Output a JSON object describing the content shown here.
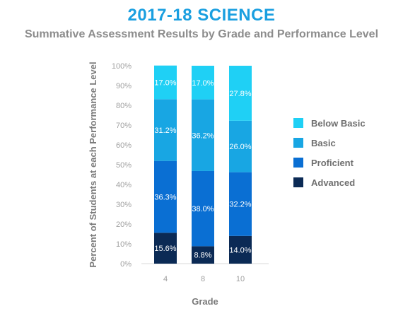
{
  "chart_data": {
    "type": "bar",
    "stacked": true,
    "title": "2017-18 SCIENCE",
    "subtitle": "Summative Assessment Results by Grade and Performance Level",
    "xlabel": "Grade",
    "ylabel": "Percent of Students at each Performance Level",
    "ylim": [
      0,
      100
    ],
    "yticks": [
      "0%",
      "10%",
      "20%",
      "30%",
      "40%",
      "50%",
      "60%",
      "70%",
      "80%",
      "90%",
      "100%"
    ],
    "categories": [
      "4",
      "8",
      "10"
    ],
    "series": [
      {
        "name": "Advanced",
        "color": "#0b2a55",
        "values": [
          15.6,
          8.8,
          14.0
        ],
        "labels": [
          "15.6%",
          "8.8%",
          "14.0%"
        ]
      },
      {
        "name": "Proficient",
        "color": "#0a6fd3",
        "values": [
          36.3,
          38.0,
          32.2
        ],
        "labels": [
          "36.3%",
          "38.0%",
          "32.2%"
        ]
      },
      {
        "name": "Basic",
        "color": "#18a6e3",
        "values": [
          31.2,
          36.2,
          26.0
        ],
        "labels": [
          "31.2%",
          "36.2%",
          "26.0%"
        ]
      },
      {
        "name": "Below Basic",
        "color": "#1fd0f5",
        "values": [
          17.0,
          17.0,
          27.8
        ],
        "labels": [
          "17.0%",
          "17.0%",
          "27.8%"
        ]
      }
    ],
    "legend_order": [
      "Below Basic",
      "Basic",
      "Proficient",
      "Advanced"
    ],
    "legend_position": "right",
    "grid": false
  }
}
